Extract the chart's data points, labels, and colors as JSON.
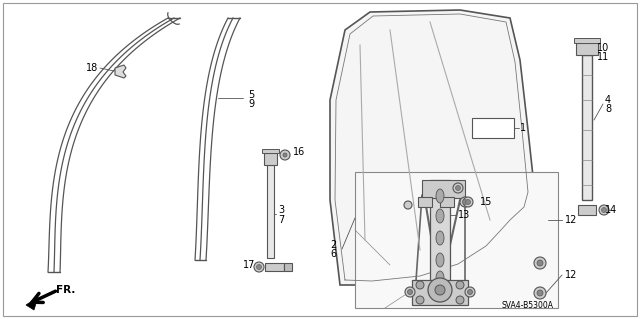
{
  "bg_color": "#ffffff",
  "fig_width": 6.4,
  "fig_height": 3.19,
  "dpi": 100,
  "diagram_code": "SVA4-B5300A",
  "border_color": "#cccccc"
}
